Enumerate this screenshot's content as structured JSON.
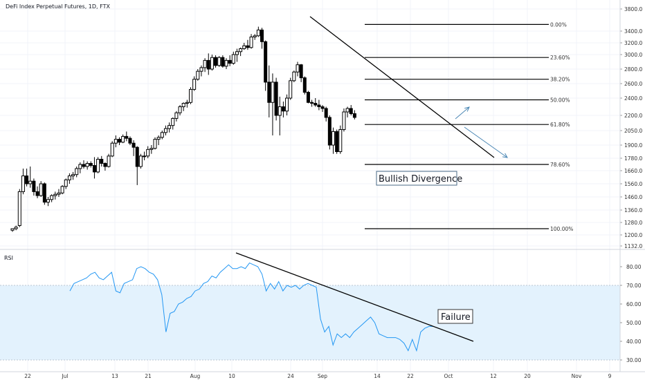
{
  "title": "DeFi Index Perpetual Futures, 1D, FTX",
  "rsi_label": "RSI",
  "annotations": {
    "bullish_divergence": "Bullish Divergence",
    "failure": "Failure"
  },
  "colors": {
    "candle": "#000000",
    "rsi_line": "#2196f3",
    "rsi_band": "#e3f2fd",
    "arrow": "#4a86b4",
    "grid": "#f0f3fa"
  },
  "chart_data": [
    {
      "type": "candlestick",
      "title": "DeFi Index Perpetual Futures, 1D, FTX",
      "y_ticks": [
        1132.0,
        1200.0,
        1280.0,
        1360.0,
        1460.0,
        1560.0,
        1660.0,
        1780.0,
        1900.0,
        2050.0,
        2200.0,
        2400.0,
        2600.0,
        2800.0,
        3000.0,
        3200.0,
        3400.0,
        3800.0
      ],
      "x_ticks": [
        "22",
        "Jul",
        "13",
        "21",
        "Aug",
        "10",
        "24",
        "Sep",
        "14",
        "22",
        "Oct",
        "12",
        "20",
        "Nov",
        "9"
      ],
      "fib_levels": [
        {
          "label": "0.00%",
          "price": 3520
        },
        {
          "label": "23.60%",
          "price": 2960
        },
        {
          "label": "38.20%",
          "price": 2660
        },
        {
          "label": "50.00%",
          "price": 2380
        },
        {
          "label": "61.80%",
          "price": 2110
        },
        {
          "label": "78.60%",
          "price": 1720
        },
        {
          "label": "100.00%",
          "price": 1240
        }
      ],
      "trendline": {
        "start": [
          0,
          3650
        ],
        "end": [
          73,
          1770
        ]
      },
      "candles": [
        [
          1230,
          1240,
          1220,
          1240
        ],
        [
          1240,
          1260,
          1230,
          1250
        ],
        [
          1260,
          1520,
          1250,
          1500
        ],
        [
          1500,
          1680,
          1480,
          1620
        ],
        [
          1620,
          1680,
          1540,
          1560
        ],
        [
          1560,
          1700,
          1530,
          1580
        ],
        [
          1580,
          1600,
          1470,
          1500
        ],
        [
          1500,
          1540,
          1450,
          1470
        ],
        [
          1470,
          1580,
          1460,
          1560
        ],
        [
          1560,
          1570,
          1400,
          1420
        ],
        [
          1420,
          1460,
          1390,
          1440
        ],
        [
          1440,
          1480,
          1420,
          1470
        ],
        [
          1470,
          1500,
          1440,
          1480
        ],
        [
          1480,
          1520,
          1460,
          1490
        ],
        [
          1490,
          1550,
          1480,
          1540
        ],
        [
          1540,
          1600,
          1520,
          1590
        ],
        [
          1590,
          1640,
          1560,
          1620
        ],
        [
          1620,
          1650,
          1590,
          1630
        ],
        [
          1630,
          1700,
          1610,
          1680
        ],
        [
          1680,
          1740,
          1640,
          1720
        ],
        [
          1720,
          1760,
          1680,
          1700
        ],
        [
          1700,
          1750,
          1670,
          1730
        ],
        [
          1730,
          1750,
          1690,
          1710
        ],
        [
          1710,
          1790,
          1600,
          1650
        ],
        [
          1650,
          1790,
          1640,
          1770
        ],
        [
          1770,
          1800,
          1700,
          1730
        ],
        [
          1730,
          1740,
          1660,
          1700
        ],
        [
          1700,
          1820,
          1690,
          1800
        ],
        [
          1800,
          1940,
          1790,
          1920
        ],
        [
          1920,
          2000,
          1880,
          1960
        ],
        [
          1960,
          1980,
          1900,
          1930
        ],
        [
          1930,
          2010,
          1920,
          1990
        ],
        [
          1990,
          2040,
          1940,
          1970
        ],
        [
          1970,
          1990,
          1900,
          1920
        ],
        [
          1920,
          1950,
          1800,
          1880
        ],
        [
          1880,
          1890,
          1550,
          1700
        ],
        [
          1700,
          1820,
          1680,
          1800
        ],
        [
          1800,
          1840,
          1760,
          1800
        ],
        [
          1800,
          1890,
          1780,
          1860
        ],
        [
          1860,
          1900,
          1820,
          1870
        ],
        [
          1870,
          1980,
          1860,
          1960
        ],
        [
          1960,
          2000,
          1900,
          1980
        ],
        [
          1980,
          2050,
          1960,
          2030
        ],
        [
          2030,
          2100,
          2000,
          2070
        ],
        [
          2070,
          2130,
          2030,
          2100
        ],
        [
          2100,
          2180,
          2060,
          2170
        ],
        [
          2170,
          2250,
          2140,
          2230
        ],
        [
          2230,
          2320,
          2200,
          2300
        ],
        [
          2300,
          2350,
          2250,
          2340
        ],
        [
          2340,
          2380,
          2290,
          2350
        ],
        [
          2350,
          2550,
          2330,
          2520
        ],
        [
          2520,
          2700,
          2500,
          2660
        ],
        [
          2660,
          2800,
          2640,
          2770
        ],
        [
          2770,
          2850,
          2700,
          2820
        ],
        [
          2820,
          2950,
          2760,
          2920
        ],
        [
          2920,
          3020,
          2720,
          2800
        ],
        [
          2800,
          3000,
          2780,
          2960
        ],
        [
          2960,
          2990,
          2820,
          2850
        ],
        [
          2850,
          2980,
          2830,
          2960
        ],
        [
          2960,
          2990,
          2820,
          2840
        ],
        [
          2840,
          2950,
          2800,
          2920
        ],
        [
          2920,
          2990,
          2840,
          2880
        ],
        [
          2880,
          3050,
          2860,
          3000
        ],
        [
          3000,
          3100,
          2900,
          3050
        ],
        [
          3050,
          3120,
          2980,
          3100
        ],
        [
          3100,
          3200,
          3080,
          3150
        ],
        [
          3150,
          3250,
          3080,
          3120
        ],
        [
          3120,
          3350,
          3100,
          3300
        ],
        [
          3300,
          3350,
          3250,
          3320
        ],
        [
          3320,
          3480,
          3300,
          3420
        ],
        [
          3420,
          3460,
          3100,
          3220
        ],
        [
          3220,
          3240,
          2500,
          2620
        ],
        [
          2620,
          2850,
          2180,
          2350
        ],
        [
          2350,
          2740,
          2000,
          2620
        ],
        [
          2620,
          2680,
          2150,
          2200
        ],
        [
          2200,
          2420,
          2000,
          2300
        ],
        [
          2300,
          2360,
          2180,
          2250
        ],
        [
          2250,
          2450,
          2200,
          2400
        ],
        [
          2400,
          2680,
          2380,
          2640
        ],
        [
          2640,
          2780,
          2620,
          2760
        ],
        [
          2760,
          2900,
          2700,
          2860
        ],
        [
          2860,
          2870,
          2620,
          2680
        ],
        [
          2680,
          2700,
          2450,
          2480
        ],
        [
          2480,
          2500,
          2340,
          2350
        ],
        [
          2350,
          2380,
          2300,
          2340
        ],
        [
          2340,
          2400,
          2300,
          2320
        ],
        [
          2320,
          2380,
          2260,
          2300
        ],
        [
          2300,
          2320,
          2240,
          2280
        ],
        [
          2280,
          2300,
          2140,
          2180
        ],
        [
          2180,
          2200,
          1860,
          1900
        ],
        [
          1900,
          2080,
          1820,
          2040
        ],
        [
          2040,
          2060,
          1820,
          1840
        ],
        [
          1840,
          2100,
          1820,
          2060
        ],
        [
          2060,
          2280,
          2040,
          2240
        ],
        [
          2240,
          2300,
          2180,
          2280
        ],
        [
          2280,
          2320,
          2200,
          2220
        ],
        [
          2220,
          2260,
          2160,
          2180
        ]
      ]
    },
    {
      "type": "line",
      "title": "RSI",
      "y_ticks": [
        30.0,
        40.0,
        50.0,
        60.0,
        70.0,
        80.0
      ],
      "band": [
        30,
        70
      ],
      "values": [
        67,
        71,
        72,
        73,
        74,
        76,
        77,
        74,
        73,
        75,
        77,
        67,
        66,
        71,
        72,
        73,
        79,
        80,
        79,
        77,
        76,
        73,
        65,
        45,
        55,
        56,
        60,
        61,
        63,
        64,
        67,
        68,
        71,
        72,
        75,
        74,
        77,
        79,
        81,
        79,
        79,
        80,
        79,
        82,
        81,
        80,
        76,
        67,
        71,
        68,
        72,
        67,
        70,
        69,
        70,
        68,
        70,
        71,
        70,
        69,
        52,
        45,
        48,
        38,
        44,
        42,
        44,
        42,
        45,
        47,
        49,
        51,
        53,
        50,
        44,
        43,
        42,
        42,
        42,
        41,
        39,
        35,
        41,
        35,
        45,
        47,
        48,
        48
      ]
    }
  ]
}
